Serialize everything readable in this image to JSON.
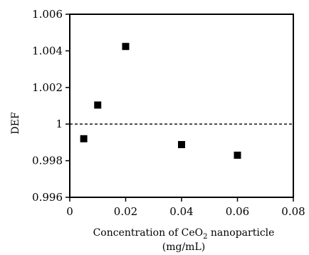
{
  "chart_data": {
    "type": "scatter",
    "title": "",
    "xlabel": {
      "line1_prefix": "Concentration of CeO",
      "line1_subscript": "2",
      "line1_suffix": " nanoparticle",
      "line2": "(mg/mL)"
    },
    "ylabel": "DEF",
    "xlim": [
      0,
      0.08
    ],
    "ylim": [
      0.996,
      1.006
    ],
    "x_ticks": [
      {
        "value": 0,
        "label": "0"
      },
      {
        "value": 0.02,
        "label": "0.02"
      },
      {
        "value": 0.04,
        "label": "0.04"
      },
      {
        "value": 0.06,
        "label": "0.06"
      },
      {
        "value": 0.08,
        "label": "0.08"
      }
    ],
    "y_ticks": [
      {
        "value": 0.996,
        "label": "0.996"
      },
      {
        "value": 0.998,
        "label": "0.998"
      },
      {
        "value": 1.0,
        "label": "1"
      },
      {
        "value": 1.002,
        "label": "1.002"
      },
      {
        "value": 1.004,
        "label": "1.004"
      },
      {
        "value": 1.006,
        "label": "1.006"
      }
    ],
    "reference_line": {
      "y": 1.0,
      "style": "dashed"
    },
    "grid": false,
    "legend": "none",
    "marker": {
      "shape": "square",
      "color": "#000000"
    },
    "points": [
      {
        "x": 0.005,
        "y": 0.9992
      },
      {
        "x": 0.01,
        "y": 1.00104
      },
      {
        "x": 0.02,
        "y": 1.00424
      },
      {
        "x": 0.04,
        "y": 0.99888
      },
      {
        "x": 0.06,
        "y": 0.9983
      }
    ]
  }
}
